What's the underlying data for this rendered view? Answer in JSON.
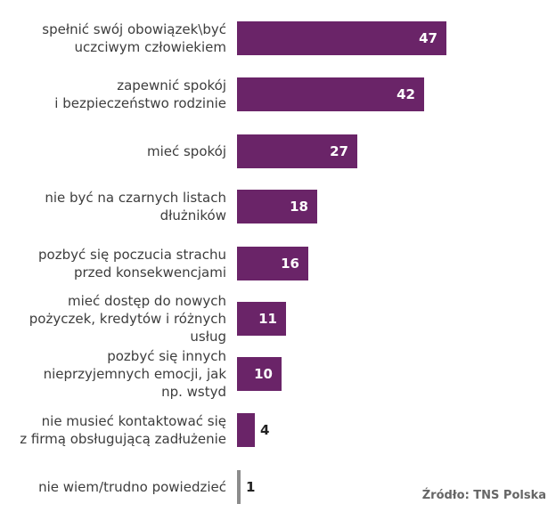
{
  "chart_data": {
    "type": "bar",
    "orientation": "horizontal",
    "categories": [
      [
        "spełnić swój obowiązek\\być",
        "uczciwym człowiekiem"
      ],
      [
        "zapewnić spokój",
        "i bezpieczeństwo rodzinie"
      ],
      [
        "mieć spokój"
      ],
      [
        "nie być na czarnych listach",
        "dłużników"
      ],
      [
        "pozbyć się poczucia strachu",
        "przed konsekwencjami"
      ],
      [
        "mieć dostęp do nowych",
        "pożyczek, kredytów i różnych",
        "usług"
      ],
      [
        "pozbyć się innych",
        "nieprzyjemnych emocji, jak",
        "np. wstyd"
      ],
      [
        "nie musieć kontaktować się",
        "z firmą obsługującą zadłużenie"
      ],
      [
        "nie wiem/trudno powiedzieć"
      ]
    ],
    "values": [
      47,
      42,
      27,
      18,
      16,
      11,
      10,
      4,
      1
    ],
    "value_labels": [
      "47",
      "42",
      "27",
      "18",
      "16",
      "11",
      "10",
      "4",
      "1"
    ],
    "bar_color": "#6a2468",
    "last_bar_color": "#8c8c8c",
    "label_inside_color": "#ffffff",
    "label_outside_color": "#222222",
    "axes_shown": false,
    "grid": false,
    "legend": false
  },
  "source": "Źródło: TNS Polska"
}
